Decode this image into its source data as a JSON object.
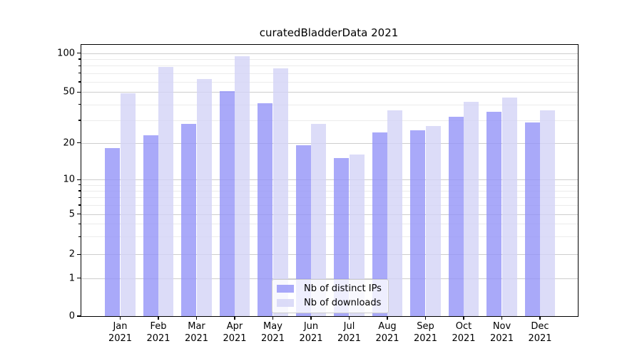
{
  "figure": {
    "title": "curatedBladderData 2021"
  },
  "chart_data": {
    "type": "bar",
    "title": "curatedBladderData 2021",
    "xlabel": "",
    "ylabel": "",
    "categories_month": [
      "Jan",
      "Feb",
      "Mar",
      "Apr",
      "May",
      "Jun",
      "Jul",
      "Aug",
      "Sep",
      "Oct",
      "Nov",
      "Dec"
    ],
    "categories_year": "2021",
    "series": [
      {
        "name": "Nb of distinct IPs",
        "color": "rgba(148,148,248,0.8)",
        "values": [
          18,
          23,
          28,
          51,
          41,
          19,
          15,
          24,
          25,
          32,
          35,
          29
        ]
      },
      {
        "name": "Nb of downloads",
        "color": "rgba(211,211,246,0.8)",
        "values": [
          49,
          78,
          63,
          95,
          76,
          28,
          16,
          36,
          27,
          42,
          45,
          36
        ]
      }
    ],
    "yscale": "symlog",
    "ylim": [
      0,
      115
    ],
    "y_major_ticks": [
      0,
      1,
      2,
      5,
      10,
      20,
      50,
      100
    ],
    "y_minor_ticks": [
      3,
      4,
      6,
      7,
      8,
      9,
      30,
      40,
      60,
      70,
      80,
      90
    ],
    "grid": true,
    "legend_position": "lower center",
    "colors": {
      "major_grid": "#cdcdcd",
      "minor_grid": "#ebebeb",
      "spine": "#000000",
      "text": "#000000"
    }
  }
}
